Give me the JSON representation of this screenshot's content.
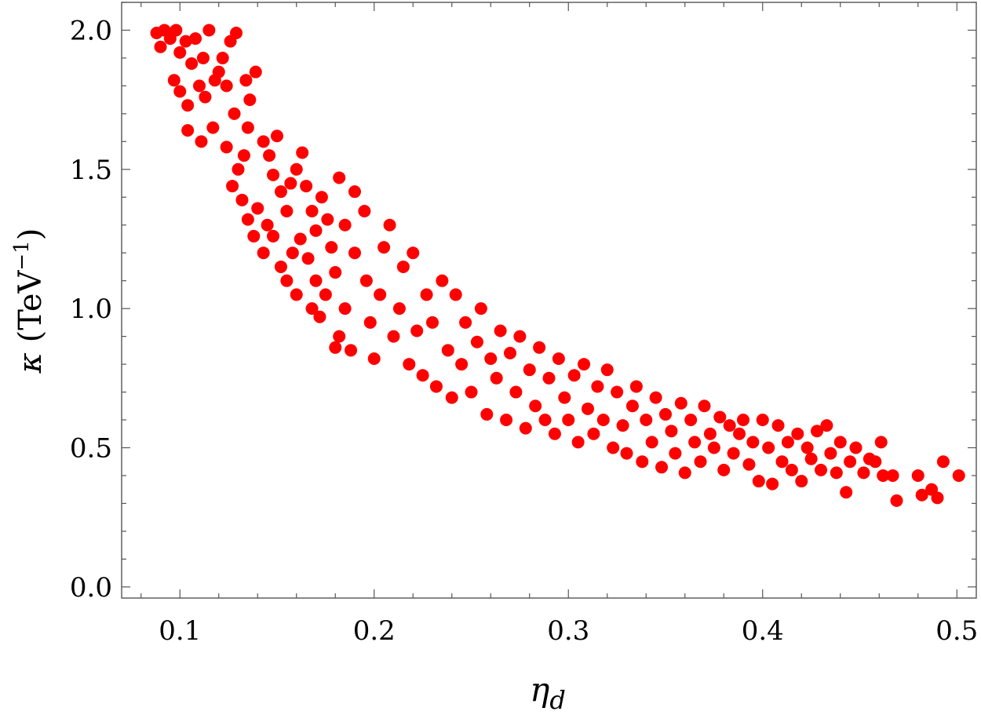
{
  "chart_data": {
    "type": "scatter",
    "title": "",
    "xlabel": {
      "symbol": "η",
      "subscript": "d"
    },
    "ylabel": {
      "symbol": "κ",
      "text": " (TeV",
      "superscript": "−1",
      "suffix": ")"
    },
    "xlim": [
      0.07,
      0.51
    ],
    "ylim": [
      -0.04,
      2.1
    ],
    "x_ticks": [
      0.1,
      0.2,
      0.3,
      0.4,
      0.5
    ],
    "x_tick_labels": [
      "0.1",
      "0.2",
      "0.3",
      "0.4",
      "0.5"
    ],
    "y_ticks": [
      0.0,
      0.5,
      1.0,
      1.5,
      2.0
    ],
    "y_tick_labels": [
      "0.0",
      "0.5",
      "1.0",
      "1.5",
      "2.0"
    ],
    "grid": false,
    "legend": "none",
    "marker_color": "#ff0000",
    "series": [
      {
        "points": [
          [
            0.088,
            1.99
          ],
          [
            0.092,
            2.0
          ],
          [
            0.095,
            1.97
          ],
          [
            0.098,
            2.0
          ],
          [
            0.09,
            1.94
          ],
          [
            0.1,
            1.92
          ],
          [
            0.103,
            1.96
          ],
          [
            0.106,
            1.88
          ],
          [
            0.108,
            1.97
          ],
          [
            0.112,
            1.9
          ],
          [
            0.115,
            2.0
          ],
          [
            0.097,
            1.82
          ],
          [
            0.1,
            1.78
          ],
          [
            0.104,
            1.73
          ],
          [
            0.11,
            1.8
          ],
          [
            0.113,
            1.76
          ],
          [
            0.118,
            1.82
          ],
          [
            0.122,
            1.9
          ],
          [
            0.126,
            1.96
          ],
          [
            0.129,
            1.99
          ],
          [
            0.12,
            1.85
          ],
          [
            0.124,
            1.8
          ],
          [
            0.104,
            1.64
          ],
          [
            0.111,
            1.6
          ],
          [
            0.117,
            1.65
          ],
          [
            0.128,
            1.7
          ],
          [
            0.124,
            1.58
          ],
          [
            0.127,
            1.44
          ],
          [
            0.133,
            1.55
          ],
          [
            0.13,
            1.5
          ],
          [
            0.134,
            1.82
          ],
          [
            0.136,
            1.75
          ],
          [
            0.139,
            1.85
          ],
          [
            0.135,
            1.65
          ],
          [
            0.132,
            1.39
          ],
          [
            0.135,
            1.32
          ],
          [
            0.138,
            1.26
          ],
          [
            0.14,
            1.36
          ],
          [
            0.143,
            1.2
          ],
          [
            0.143,
            1.6
          ],
          [
            0.146,
            1.55
          ],
          [
            0.15,
            1.62
          ],
          [
            0.148,
            1.48
          ],
          [
            0.152,
            1.42
          ],
          [
            0.145,
            1.3
          ],
          [
            0.148,
            1.26
          ],
          [
            0.152,
            1.15
          ],
          [
            0.155,
            1.1
          ],
          [
            0.158,
            1.2
          ],
          [
            0.16,
            1.05
          ],
          [
            0.155,
            1.35
          ],
          [
            0.157,
            1.45
          ],
          [
            0.16,
            1.5
          ],
          [
            0.163,
            1.56
          ],
          [
            0.165,
            1.44
          ],
          [
            0.168,
            1.35
          ],
          [
            0.162,
            1.25
          ],
          [
            0.166,
            1.18
          ],
          [
            0.17,
            1.1
          ],
          [
            0.168,
            1.0
          ],
          [
            0.172,
            0.97
          ],
          [
            0.175,
            1.05
          ],
          [
            0.17,
            1.28
          ],
          [
            0.173,
            1.4
          ],
          [
            0.176,
            1.32
          ],
          [
            0.178,
            1.22
          ],
          [
            0.18,
            1.13
          ],
          [
            0.182,
            0.9
          ],
          [
            0.185,
            1.0
          ],
          [
            0.18,
            0.86
          ],
          [
            0.188,
            0.85
          ],
          [
            0.19,
            1.2
          ],
          [
            0.185,
            1.3
          ],
          [
            0.19,
            1.42
          ],
          [
            0.182,
            1.47
          ],
          [
            0.195,
            1.35
          ],
          [
            0.196,
            1.1
          ],
          [
            0.198,
            0.95
          ],
          [
            0.2,
            0.82
          ],
          [
            0.203,
            1.05
          ],
          [
            0.205,
            1.22
          ],
          [
            0.208,
            1.3
          ],
          [
            0.21,
            0.9
          ],
          [
            0.213,
            1.0
          ],
          [
            0.215,
            1.15
          ],
          [
            0.218,
            0.8
          ],
          [
            0.22,
            1.2
          ],
          [
            0.222,
            0.92
          ],
          [
            0.225,
            0.76
          ],
          [
            0.227,
            1.05
          ],
          [
            0.23,
            0.95
          ],
          [
            0.232,
            0.72
          ],
          [
            0.235,
            1.1
          ],
          [
            0.238,
            0.85
          ],
          [
            0.24,
            0.68
          ],
          [
            0.242,
            1.05
          ],
          [
            0.245,
            0.8
          ],
          [
            0.247,
            0.95
          ],
          [
            0.25,
            0.7
          ],
          [
            0.253,
            0.88
          ],
          [
            0.255,
            1.0
          ],
          [
            0.258,
            0.62
          ],
          [
            0.26,
            0.82
          ],
          [
            0.263,
            0.75
          ],
          [
            0.265,
            0.92
          ],
          [
            0.268,
            0.6
          ],
          [
            0.27,
            0.84
          ],
          [
            0.273,
            0.7
          ],
          [
            0.275,
            0.9
          ],
          [
            0.278,
            0.57
          ],
          [
            0.28,
            0.78
          ],
          [
            0.283,
            0.65
          ],
          [
            0.285,
            0.86
          ],
          [
            0.288,
            0.6
          ],
          [
            0.29,
            0.75
          ],
          [
            0.293,
            0.55
          ],
          [
            0.295,
            0.82
          ],
          [
            0.298,
            0.68
          ],
          [
            0.3,
            0.6
          ],
          [
            0.303,
            0.76
          ],
          [
            0.305,
            0.52
          ],
          [
            0.308,
            0.8
          ],
          [
            0.31,
            0.64
          ],
          [
            0.313,
            0.55
          ],
          [
            0.315,
            0.72
          ],
          [
            0.318,
            0.6
          ],
          [
            0.32,
            0.78
          ],
          [
            0.323,
            0.5
          ],
          [
            0.325,
            0.7
          ],
          [
            0.328,
            0.58
          ],
          [
            0.33,
            0.48
          ],
          [
            0.333,
            0.65
          ],
          [
            0.335,
            0.72
          ],
          [
            0.338,
            0.45
          ],
          [
            0.34,
            0.6
          ],
          [
            0.343,
            0.52
          ],
          [
            0.345,
            0.68
          ],
          [
            0.348,
            0.43
          ],
          [
            0.35,
            0.62
          ],
          [
            0.353,
            0.56
          ],
          [
            0.355,
            0.48
          ],
          [
            0.358,
            0.66
          ],
          [
            0.36,
            0.41
          ],
          [
            0.363,
            0.6
          ],
          [
            0.365,
            0.52
          ],
          [
            0.368,
            0.45
          ],
          [
            0.37,
            0.65
          ],
          [
            0.373,
            0.55
          ],
          [
            0.375,
            0.5
          ],
          [
            0.378,
            0.61
          ],
          [
            0.38,
            0.42
          ],
          [
            0.383,
            0.58
          ],
          [
            0.385,
            0.48
          ],
          [
            0.388,
            0.55
          ],
          [
            0.39,
            0.6
          ],
          [
            0.393,
            0.44
          ],
          [
            0.395,
            0.52
          ],
          [
            0.398,
            0.38
          ],
          [
            0.4,
            0.6
          ],
          [
            0.403,
            0.5
          ],
          [
            0.405,
            0.37
          ],
          [
            0.408,
            0.58
          ],
          [
            0.41,
            0.45
          ],
          [
            0.413,
            0.52
          ],
          [
            0.415,
            0.42
          ],
          [
            0.418,
            0.55
          ],
          [
            0.42,
            0.38
          ],
          [
            0.423,
            0.5
          ],
          [
            0.425,
            0.46
          ],
          [
            0.428,
            0.56
          ],
          [
            0.43,
            0.42
          ],
          [
            0.433,
            0.58
          ],
          [
            0.435,
            0.48
          ],
          [
            0.438,
            0.41
          ],
          [
            0.44,
            0.52
          ],
          [
            0.443,
            0.34
          ],
          [
            0.445,
            0.45
          ],
          [
            0.448,
            0.5
          ],
          [
            0.452,
            0.41
          ],
          [
            0.455,
            0.46
          ],
          [
            0.458,
            0.45
          ],
          [
            0.461,
            0.52
          ],
          [
            0.462,
            0.4
          ],
          [
            0.467,
            0.4
          ],
          [
            0.469,
            0.31
          ],
          [
            0.48,
            0.4
          ],
          [
            0.482,
            0.33
          ],
          [
            0.487,
            0.35
          ],
          [
            0.49,
            0.32
          ],
          [
            0.493,
            0.45
          ],
          [
            0.501,
            0.4
          ]
        ]
      }
    ]
  }
}
